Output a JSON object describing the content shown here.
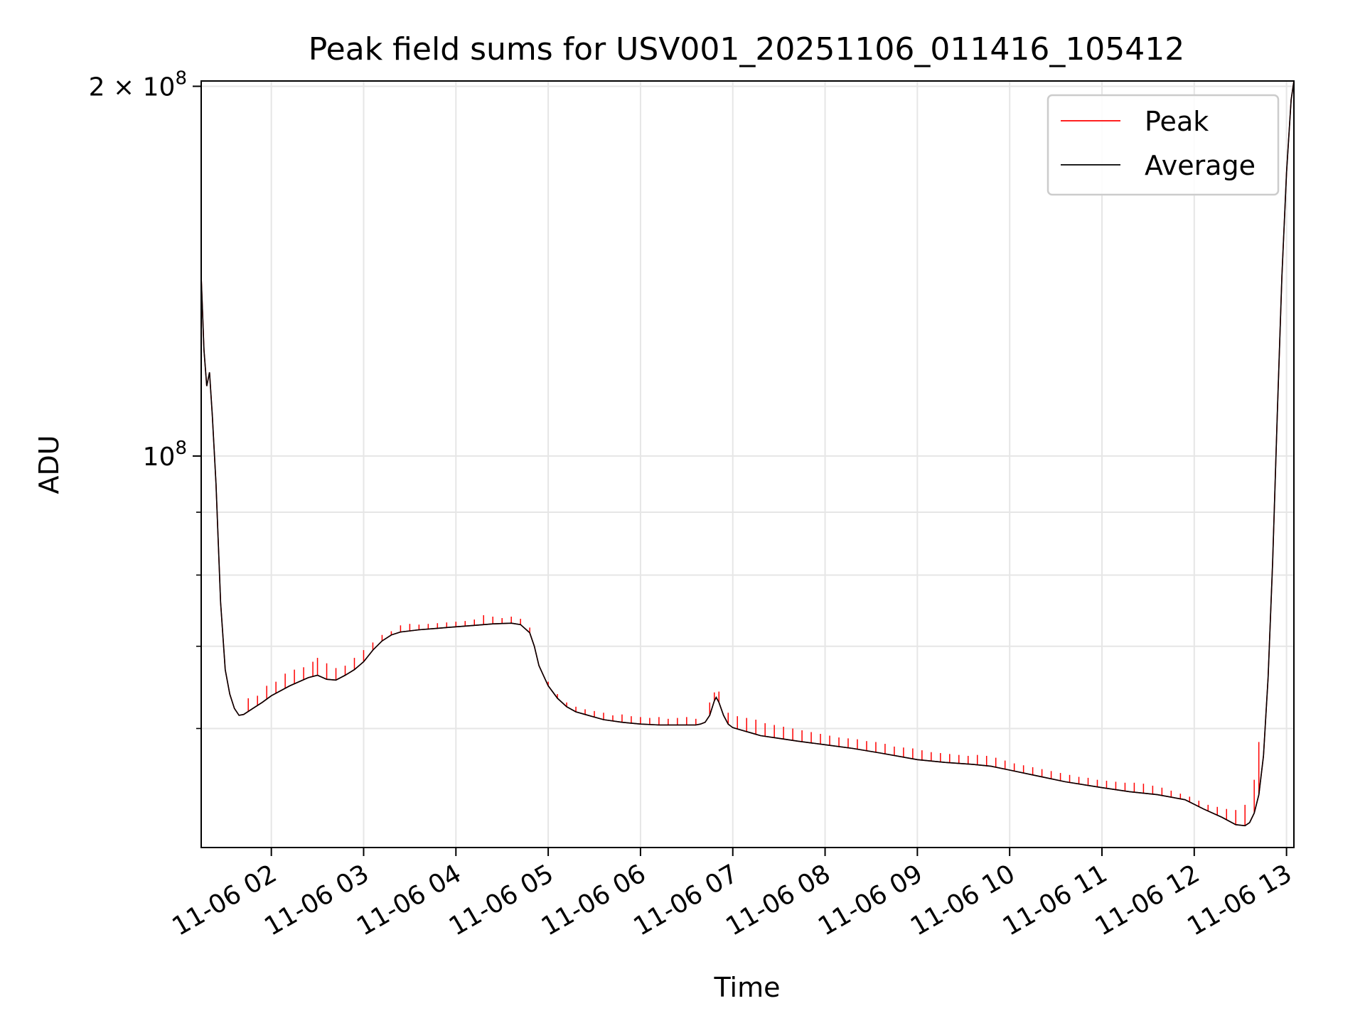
{
  "chart_data": {
    "type": "line",
    "title": "Peak field sums for USV001_20251106_011416_105412",
    "xlabel": "Time",
    "ylabel": "ADU",
    "yscale": "log",
    "xlim": [
      1.24,
      13.08
    ],
    "ylim": [
      48000000,
      202000000
    ],
    "x_unit": "hours since 2025-11-06 00:00",
    "x_ticks": [
      {
        "value": 2,
        "label": "11-06 02"
      },
      {
        "value": 3,
        "label": "11-06 03"
      },
      {
        "value": 4,
        "label": "11-06 04"
      },
      {
        "value": 5,
        "label": "11-06 05"
      },
      {
        "value": 6,
        "label": "11-06 06"
      },
      {
        "value": 7,
        "label": "11-06 07"
      },
      {
        "value": 8,
        "label": "11-06 08"
      },
      {
        "value": 9,
        "label": "11-06 09"
      },
      {
        "value": 10,
        "label": "11-06 10"
      },
      {
        "value": 11,
        "label": "11-06 11"
      },
      {
        "value": 12,
        "label": "11-06 12"
      },
      {
        "value": 13,
        "label": "11-06 13"
      }
    ],
    "y_major_ticks": [
      {
        "value": 100000000,
        "base": "10",
        "exp": "8",
        "prefix": ""
      },
      {
        "value": 200000000,
        "base": "10",
        "exp": "8",
        "prefix": "2 × "
      }
    ],
    "y_minor_ticks": [
      60000000,
      70000000,
      80000000,
      90000000
    ],
    "grid": true,
    "legend_position": "top-right",
    "series": [
      {
        "name": "Average",
        "color": "#000000",
        "x": [
          1.24,
          1.27,
          1.3,
          1.33,
          1.36,
          1.4,
          1.45,
          1.5,
          1.55,
          1.6,
          1.65,
          1.7,
          1.8,
          1.9,
          2.0,
          2.2,
          2.4,
          2.5,
          2.6,
          2.7,
          2.8,
          2.9,
          3.0,
          3.1,
          3.2,
          3.3,
          3.4,
          3.6,
          3.8,
          4.0,
          4.2,
          4.4,
          4.6,
          4.7,
          4.8,
          4.85,
          4.9,
          5.0,
          5.1,
          5.2,
          5.3,
          5.4,
          5.5,
          5.6,
          5.8,
          6.0,
          6.2,
          6.4,
          6.6,
          6.65,
          6.7,
          6.75,
          6.8,
          6.82,
          6.85,
          6.9,
          6.95,
          7.0,
          7.1,
          7.2,
          7.3,
          7.5,
          7.7,
          8.0,
          8.3,
          8.6,
          9.0,
          9.3,
          9.6,
          9.8,
          10.0,
          10.3,
          10.6,
          11.0,
          11.3,
          11.6,
          11.9,
          12.1,
          12.3,
          12.45,
          12.55,
          12.6,
          12.65,
          12.7,
          12.75,
          12.8,
          12.85,
          12.9,
          12.95,
          13.0,
          13.05,
          13.08
        ],
        "y": [
          140000000,
          122000000,
          114000000,
          117000000,
          108000000,
          95000000,
          76000000,
          67000000,
          64000000,
          62300000,
          61500000,
          61600000,
          62300000,
          63000000,
          63800000,
          65000000,
          66000000,
          66300000,
          65800000,
          65700000,
          66300000,
          67000000,
          68000000,
          69500000,
          70700000,
          71500000,
          71900000,
          72200000,
          72400000,
          72600000,
          72800000,
          73000000,
          73100000,
          72900000,
          71800000,
          70000000,
          67500000,
          65000000,
          63500000,
          62500000,
          61900000,
          61600000,
          61300000,
          61000000,
          60700000,
          60500000,
          60400000,
          60400000,
          60400000,
          60500000,
          60700000,
          61500000,
          63200000,
          63600000,
          63000000,
          61500000,
          60500000,
          60100000,
          59800000,
          59500000,
          59200000,
          58900000,
          58600000,
          58200000,
          57800000,
          57300000,
          56600000,
          56300000,
          56100000,
          55900000,
          55500000,
          54900000,
          54300000,
          53700000,
          53300000,
          53000000,
          52500000,
          51600000,
          50800000,
          50100000,
          50000000,
          50300000,
          51200000,
          53000000,
          57000000,
          66000000,
          82000000,
          108000000,
          140000000,
          170000000,
          195000000,
          202000000
        ]
      },
      {
        "name": "Peak",
        "color": "#ff0000",
        "spikes": [
          {
            "x": 1.75,
            "y": 63500000
          },
          {
            "x": 1.85,
            "y": 63800000
          },
          {
            "x": 1.95,
            "y": 65000000
          },
          {
            "x": 2.05,
            "y": 65500000
          },
          {
            "x": 2.15,
            "y": 66500000
          },
          {
            "x": 2.25,
            "y": 67000000
          },
          {
            "x": 2.35,
            "y": 67300000
          },
          {
            "x": 2.45,
            "y": 68000000
          },
          {
            "x": 2.5,
            "y": 68500000
          },
          {
            "x": 2.6,
            "y": 67800000
          },
          {
            "x": 2.7,
            "y": 67200000
          },
          {
            "x": 2.8,
            "y": 67500000
          },
          {
            "x": 2.9,
            "y": 68500000
          },
          {
            "x": 3.0,
            "y": 69500000
          },
          {
            "x": 3.1,
            "y": 70500000
          },
          {
            "x": 3.2,
            "y": 71500000
          },
          {
            "x": 3.3,
            "y": 72000000
          },
          {
            "x": 3.4,
            "y": 72800000
          },
          {
            "x": 3.5,
            "y": 73000000
          },
          {
            "x": 3.6,
            "y": 72900000
          },
          {
            "x": 3.7,
            "y": 73000000
          },
          {
            "x": 3.8,
            "y": 73100000
          },
          {
            "x": 3.9,
            "y": 73200000
          },
          {
            "x": 4.0,
            "y": 73300000
          },
          {
            "x": 4.1,
            "y": 73400000
          },
          {
            "x": 4.2,
            "y": 73600000
          },
          {
            "x": 4.3,
            "y": 74200000
          },
          {
            "x": 4.4,
            "y": 74000000
          },
          {
            "x": 4.5,
            "y": 73800000
          },
          {
            "x": 4.6,
            "y": 74000000
          },
          {
            "x": 4.7,
            "y": 73700000
          },
          {
            "x": 4.8,
            "y": 72500000
          },
          {
            "x": 5.0,
            "y": 65500000
          },
          {
            "x": 5.1,
            "y": 64000000
          },
          {
            "x": 5.2,
            "y": 63000000
          },
          {
            "x": 5.3,
            "y": 62500000
          },
          {
            "x": 5.4,
            "y": 62200000
          },
          {
            "x": 5.5,
            "y": 62000000
          },
          {
            "x": 5.6,
            "y": 61800000
          },
          {
            "x": 5.7,
            "y": 61500000
          },
          {
            "x": 5.8,
            "y": 61600000
          },
          {
            "x": 5.9,
            "y": 61400000
          },
          {
            "x": 6.0,
            "y": 61300000
          },
          {
            "x": 6.1,
            "y": 61200000
          },
          {
            "x": 6.2,
            "y": 61300000
          },
          {
            "x": 6.3,
            "y": 61100000
          },
          {
            "x": 6.4,
            "y": 61200000
          },
          {
            "x": 6.5,
            "y": 61300000
          },
          {
            "x": 6.6,
            "y": 61100000
          },
          {
            "x": 6.75,
            "y": 63000000
          },
          {
            "x": 6.8,
            "y": 64200000
          },
          {
            "x": 6.85,
            "y": 64300000
          },
          {
            "x": 6.95,
            "y": 61800000
          },
          {
            "x": 7.05,
            "y": 61400000
          },
          {
            "x": 7.15,
            "y": 61200000
          },
          {
            "x": 7.25,
            "y": 61000000
          },
          {
            "x": 7.35,
            "y": 60600000
          },
          {
            "x": 7.45,
            "y": 60400000
          },
          {
            "x": 7.55,
            "y": 60200000
          },
          {
            "x": 7.65,
            "y": 60000000
          },
          {
            "x": 7.75,
            "y": 59800000
          },
          {
            "x": 7.85,
            "y": 59600000
          },
          {
            "x": 7.95,
            "y": 59400000
          },
          {
            "x": 8.05,
            "y": 59200000
          },
          {
            "x": 8.15,
            "y": 59000000
          },
          {
            "x": 8.25,
            "y": 58900000
          },
          {
            "x": 8.35,
            "y": 58800000
          },
          {
            "x": 8.45,
            "y": 58600000
          },
          {
            "x": 8.55,
            "y": 58500000
          },
          {
            "x": 8.65,
            "y": 58300000
          },
          {
            "x": 8.75,
            "y": 58000000
          },
          {
            "x": 8.85,
            "y": 57900000
          },
          {
            "x": 8.95,
            "y": 57800000
          },
          {
            "x": 9.05,
            "y": 57600000
          },
          {
            "x": 9.15,
            "y": 57400000
          },
          {
            "x": 9.25,
            "y": 57300000
          },
          {
            "x": 9.35,
            "y": 57200000
          },
          {
            "x": 9.45,
            "y": 57100000
          },
          {
            "x": 9.55,
            "y": 57000000
          },
          {
            "x": 9.65,
            "y": 57100000
          },
          {
            "x": 9.75,
            "y": 57000000
          },
          {
            "x": 9.85,
            "y": 56800000
          },
          {
            "x": 9.95,
            "y": 56500000
          },
          {
            "x": 10.05,
            "y": 56200000
          },
          {
            "x": 10.15,
            "y": 56000000
          },
          {
            "x": 10.25,
            "y": 55800000
          },
          {
            "x": 10.35,
            "y": 55600000
          },
          {
            "x": 10.45,
            "y": 55400000
          },
          {
            "x": 10.55,
            "y": 55200000
          },
          {
            "x": 10.65,
            "y": 55000000
          },
          {
            "x": 10.75,
            "y": 54800000
          },
          {
            "x": 10.85,
            "y": 54700000
          },
          {
            "x": 10.95,
            "y": 54500000
          },
          {
            "x": 11.05,
            "y": 54400000
          },
          {
            "x": 11.15,
            "y": 54300000
          },
          {
            "x": 11.25,
            "y": 54200000
          },
          {
            "x": 11.35,
            "y": 54200000
          },
          {
            "x": 11.45,
            "y": 54100000
          },
          {
            "x": 11.55,
            "y": 53900000
          },
          {
            "x": 11.65,
            "y": 53700000
          },
          {
            "x": 11.75,
            "y": 53400000
          },
          {
            "x": 11.85,
            "y": 53100000
          },
          {
            "x": 11.95,
            "y": 52800000
          },
          {
            "x": 12.05,
            "y": 52400000
          },
          {
            "x": 12.15,
            "y": 52000000
          },
          {
            "x": 12.25,
            "y": 51800000
          },
          {
            "x": 12.35,
            "y": 51600000
          },
          {
            "x": 12.45,
            "y": 51500000
          },
          {
            "x": 12.55,
            "y": 52000000
          },
          {
            "x": 12.65,
            "y": 54500000
          },
          {
            "x": 12.7,
            "y": 58500000
          }
        ]
      }
    ],
    "legend": [
      {
        "label": "Peak",
        "color": "#ff0000"
      },
      {
        "label": "Average",
        "color": "#000000"
      }
    ]
  }
}
